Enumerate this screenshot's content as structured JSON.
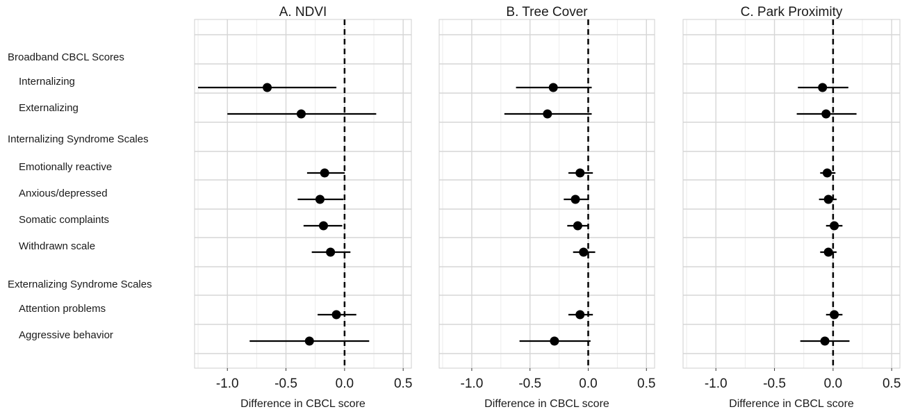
{
  "chart_data": {
    "type": "forest",
    "x_title": "Difference in CBCL score",
    "xlim": [
      -1.28,
      0.57
    ],
    "x_ticks": [
      -1.0,
      -0.5,
      0.0,
      0.5
    ],
    "x_tick_labels": [
      "-1.0",
      "-0.5",
      "0.0",
      "0.5"
    ],
    "reference_line": 0,
    "grid": true,
    "rows": [
      {
        "label": "Broadband CBCL Scores",
        "type": "header"
      },
      {
        "label": "Internalizing",
        "type": "item"
      },
      {
        "label": "Externalizing",
        "type": "item"
      },
      {
        "label": "Internalizing Syndrome Scales",
        "type": "header"
      },
      {
        "label": "Emotionally reactive",
        "type": "item"
      },
      {
        "label": "Anxious/depressed",
        "type": "item"
      },
      {
        "label": "Somatic complaints",
        "type": "item"
      },
      {
        "label": "Withdrawn scale",
        "type": "item"
      },
      {
        "label": "Externalizing Syndrome Scales",
        "type": "header"
      },
      {
        "label": "Attention problems",
        "type": "item"
      },
      {
        "label": "Aggressive behavior",
        "type": "item"
      }
    ],
    "panels": [
      {
        "title": "A. NDVI",
        "estimates": [
          {
            "label": "Internalizing",
            "est": -0.66,
            "lo": -1.25,
            "hi": -0.07
          },
          {
            "label": "Externalizing",
            "est": -0.37,
            "lo": -1.0,
            "hi": 0.27
          },
          {
            "label": "Emotionally reactive",
            "est": -0.17,
            "lo": -0.32,
            "hi": 0.0
          },
          {
            "label": "Anxious/depressed",
            "est": -0.21,
            "lo": -0.4,
            "hi": -0.01
          },
          {
            "label": "Somatic complaints",
            "est": -0.18,
            "lo": -0.35,
            "hi": -0.02
          },
          {
            "label": "Withdrawn scale",
            "est": -0.12,
            "lo": -0.28,
            "hi": 0.05
          },
          {
            "label": "Attention problems",
            "est": -0.07,
            "lo": -0.23,
            "hi": 0.1
          },
          {
            "label": "Aggressive behavior",
            "est": -0.3,
            "lo": -0.81,
            "hi": 0.21
          }
        ]
      },
      {
        "title": "B. Tree Cover",
        "estimates": [
          {
            "label": "Internalizing",
            "est": -0.3,
            "lo": -0.62,
            "hi": 0.03
          },
          {
            "label": "Externalizing",
            "est": -0.35,
            "lo": -0.72,
            "hi": 0.03
          },
          {
            "label": "Emotionally reactive",
            "est": -0.07,
            "lo": -0.17,
            "hi": 0.04
          },
          {
            "label": "Anxious/depressed",
            "est": -0.11,
            "lo": -0.21,
            "hi": 0.0
          },
          {
            "label": "Somatic complaints",
            "est": -0.09,
            "lo": -0.18,
            "hi": 0.0
          },
          {
            "label": "Withdrawn scale",
            "est": -0.04,
            "lo": -0.13,
            "hi": 0.06
          },
          {
            "label": "Attention problems",
            "est": -0.07,
            "lo": -0.17,
            "hi": 0.04
          },
          {
            "label": "Aggressive behavior",
            "est": -0.29,
            "lo": -0.59,
            "hi": 0.02
          }
        ]
      },
      {
        "title": "C. Park Proximity",
        "estimates": [
          {
            "label": "Internalizing",
            "est": -0.09,
            "lo": -0.3,
            "hi": 0.13
          },
          {
            "label": "Externalizing",
            "est": -0.06,
            "lo": -0.31,
            "hi": 0.2
          },
          {
            "label": "Emotionally reactive",
            "est": -0.05,
            "lo": -0.11,
            "hi": 0.02
          },
          {
            "label": "Anxious/depressed",
            "est": -0.04,
            "lo": -0.12,
            "hi": 0.03
          },
          {
            "label": "Somatic complaints",
            "est": 0.01,
            "lo": -0.06,
            "hi": 0.08
          },
          {
            "label": "Withdrawn scale",
            "est": -0.04,
            "lo": -0.11,
            "hi": 0.03
          },
          {
            "label": "Attention problems",
            "est": 0.01,
            "lo": -0.06,
            "hi": 0.08
          },
          {
            "label": "Aggressive behavior",
            "est": -0.07,
            "lo": -0.28,
            "hi": 0.14
          }
        ]
      }
    ]
  }
}
